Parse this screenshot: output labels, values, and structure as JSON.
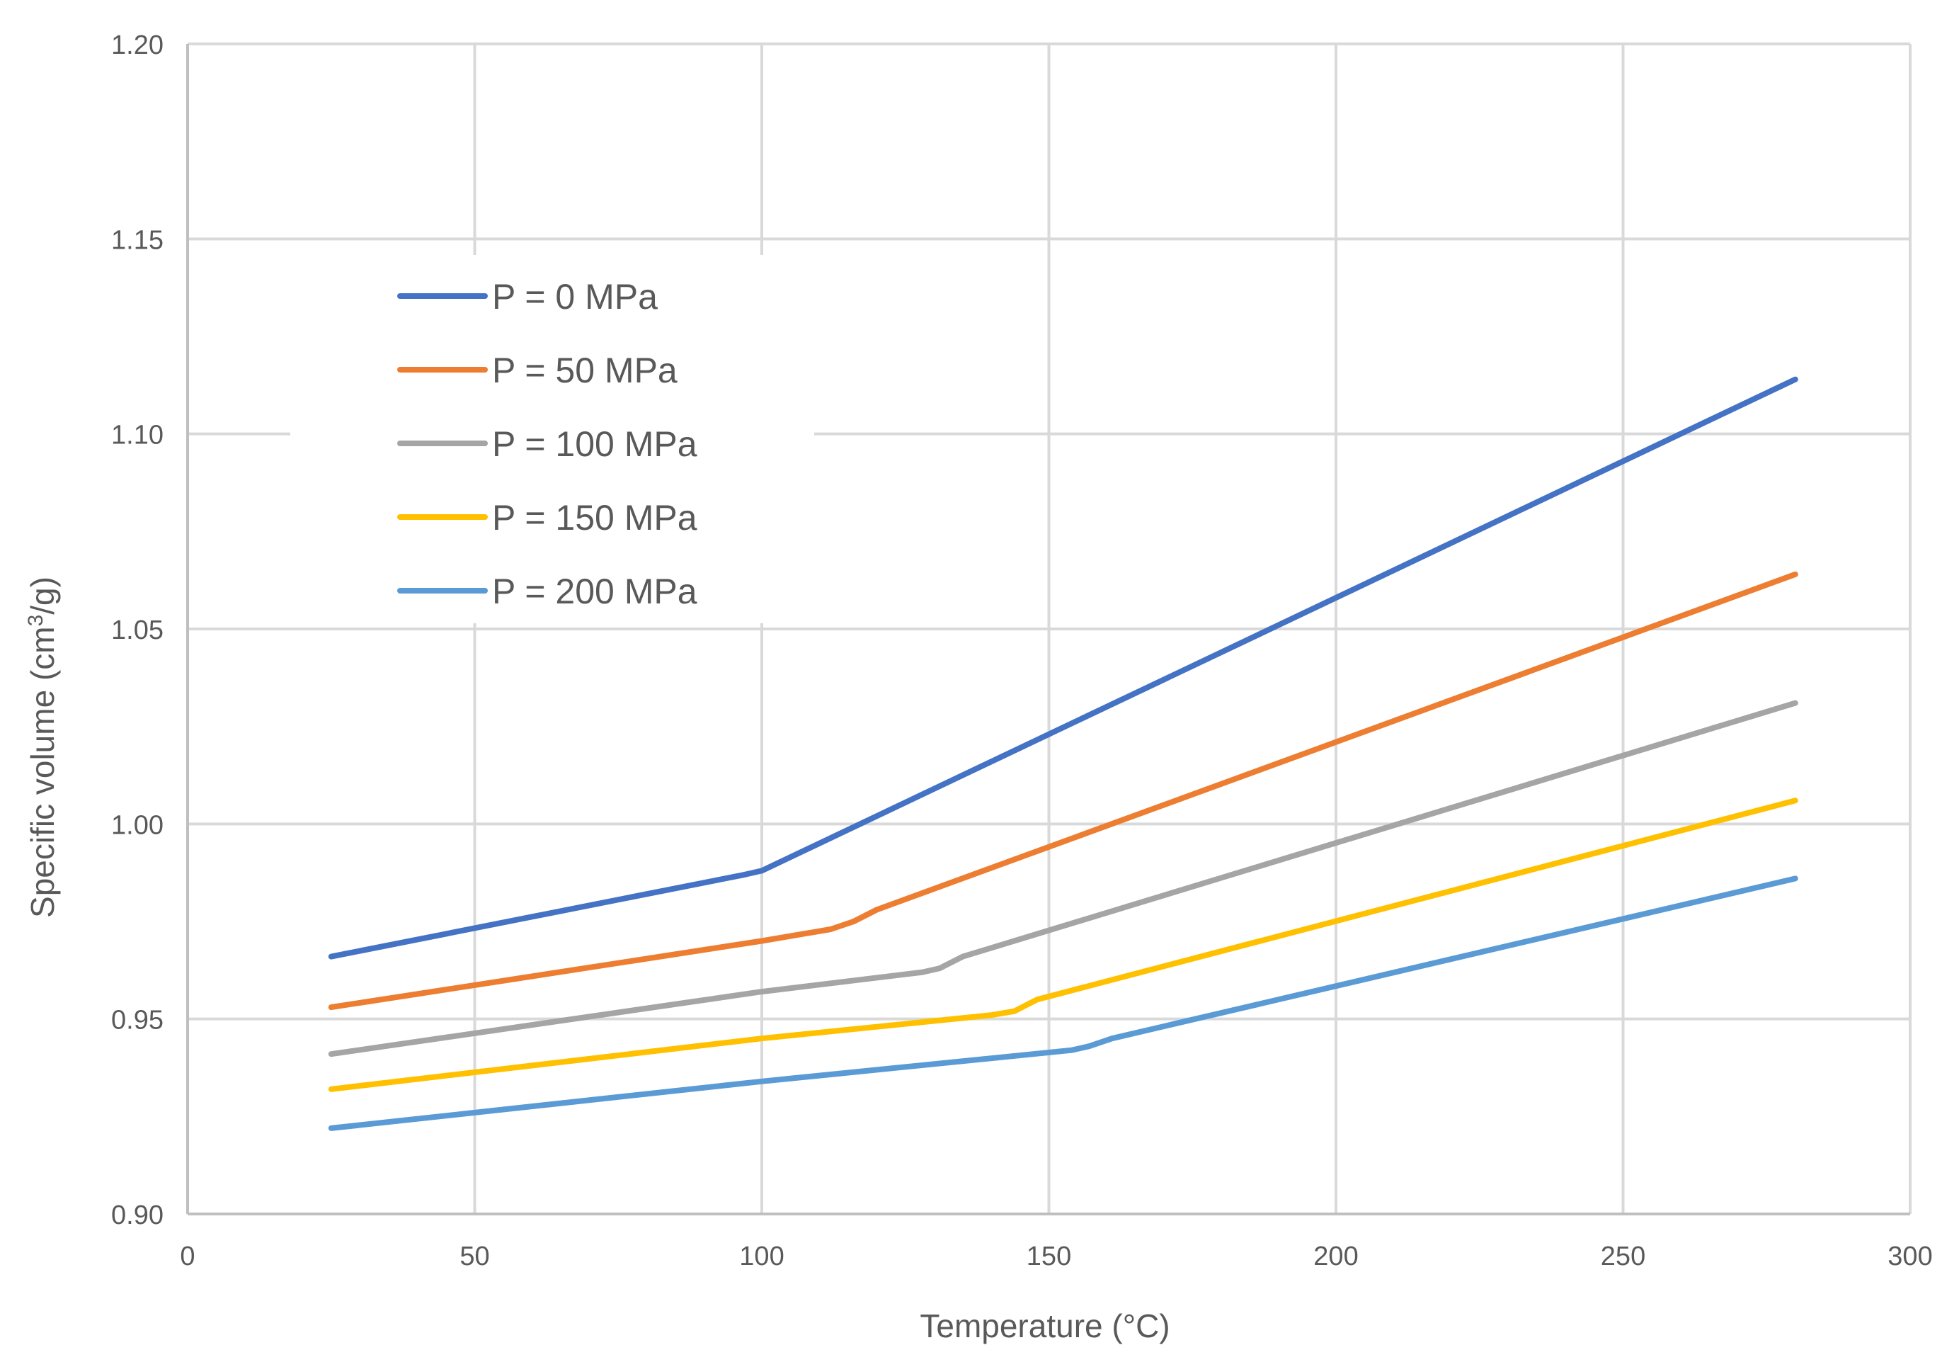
{
  "chart_data": {
    "type": "line",
    "title": "",
    "xlabel": "Temperature (°C)",
    "ylabel_main": "Specific volume (cm",
    "ylabel_sup": "3",
    "ylabel_end": "/g)",
    "xlim": [
      0,
      300
    ],
    "ylim": [
      0.9,
      1.2
    ],
    "xticks": [
      0,
      50,
      100,
      150,
      200,
      250,
      300
    ],
    "xtick_labels": [
      "0",
      "50",
      "100",
      "150",
      "200",
      "250",
      "300"
    ],
    "yticks": [
      0.9,
      0.95,
      1.0,
      1.05,
      1.1,
      1.15,
      1.2
    ],
    "ytick_labels": [
      "0.90",
      "0.95",
      "1.00",
      "1.05",
      "1.10",
      "1.15",
      "1.20"
    ],
    "grid": true,
    "legend_position": "upper-left",
    "series": [
      {
        "name": "P = 0 MPa",
        "color": "#4472C4",
        "points": [
          [
            25,
            0.966
          ],
          [
            97,
            0.987
          ],
          [
            100,
            0.988
          ],
          [
            280,
            1.114
          ]
        ]
      },
      {
        "name": "P = 50 MPa",
        "color": "#ED7D31",
        "points": [
          [
            25,
            0.953
          ],
          [
            100,
            0.97
          ],
          [
            112,
            0.973
          ],
          [
            116,
            0.975
          ],
          [
            120,
            0.978
          ],
          [
            280,
            1.064
          ]
        ]
      },
      {
        "name": "P = 100 MPa",
        "color": "#A5A5A5",
        "points": [
          [
            25,
            0.941
          ],
          [
            100,
            0.957
          ],
          [
            128,
            0.962
          ],
          [
            131,
            0.963
          ],
          [
            135,
            0.966
          ],
          [
            280,
            1.031
          ]
        ]
      },
      {
        "name": "P = 150 MPa",
        "color": "#FFC000",
        "points": [
          [
            25,
            0.932
          ],
          [
            100,
            0.945
          ],
          [
            140,
            0.951
          ],
          [
            144,
            0.952
          ],
          [
            148,
            0.955
          ],
          [
            280,
            1.006
          ]
        ]
      },
      {
        "name": "P = 200 MPa",
        "color": "#5B9BD5",
        "points": [
          [
            25,
            0.922
          ],
          [
            100,
            0.934
          ],
          [
            154,
            0.942
          ],
          [
            157,
            0.943
          ],
          [
            161,
            0.945
          ],
          [
            280,
            0.986
          ]
        ]
      }
    ]
  }
}
